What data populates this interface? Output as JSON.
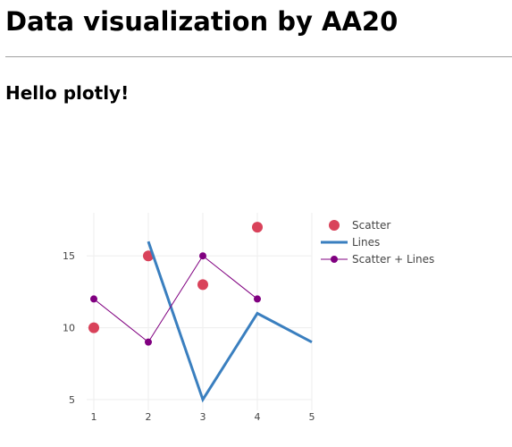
{
  "page": {
    "title": "Data visualization by AA20",
    "heading": "Hello plotly!"
  },
  "chart_data": {
    "type": "line",
    "title": "",
    "xlabel": "",
    "ylabel": "",
    "x_ticks": [
      1,
      2,
      3,
      4,
      5
    ],
    "y_ticks": [
      5,
      10,
      15
    ],
    "xlim": [
      1,
      5
    ],
    "ylim": [
      4,
      18
    ],
    "grid": true,
    "legend_position": "top-right",
    "series": [
      {
        "name": "Scatter",
        "mode": "markers",
        "color": "#d9425a",
        "x": [
          1,
          2,
          3,
          4
        ],
        "y": [
          10,
          15,
          13,
          17
        ]
      },
      {
        "name": "Lines",
        "mode": "lines",
        "color": "#3a7fbf",
        "x": [
          2,
          3,
          4,
          5
        ],
        "y": [
          16,
          5,
          11,
          9
        ]
      },
      {
        "name": "Scatter + Lines",
        "mode": "lines+markers",
        "color": "#800080",
        "x": [
          1,
          2,
          3,
          4
        ],
        "y": [
          12,
          9,
          15,
          12
        ]
      }
    ]
  }
}
